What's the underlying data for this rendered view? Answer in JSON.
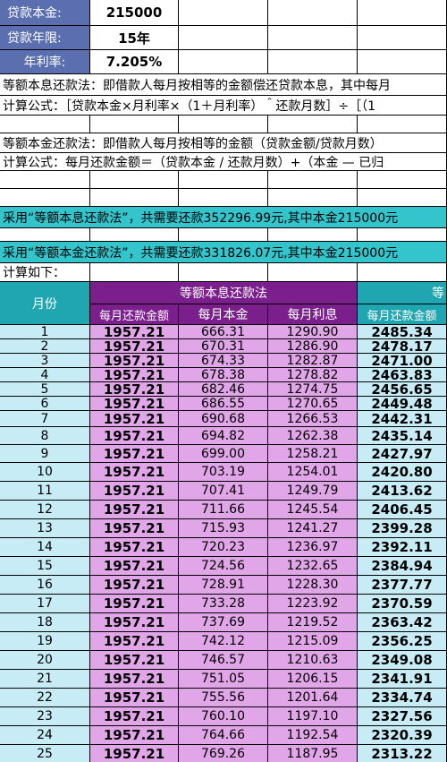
{
  "summary": {
    "principal_label": "贷款本金:",
    "principal_value": "215000",
    "years_label": "贷款年限:",
    "years_value": "15年",
    "rate_label": "年利率:",
    "rate_value": "7.205%"
  },
  "notes": {
    "equal_pi_desc": "等额本息还款法：即借款人每月按相等的金额偿还贷款本息，其中每月",
    "equal_pi_formula": "计算公式：［贷款本金×月利率×（1＋月利率）＾还款月数］÷［（1",
    "equal_p_desc": "等额本金还款法：即借款人每月按相等的金额（贷款金额/贷款月数）",
    "equal_p_formula": "计算公式：每月还款金额＝（贷款本金 / 还款月数）+（本金 — 已归",
    "equal_pi_total": "采用“等额本息还款法”，共需要还款352296.99元,其中本金215000元",
    "equal_p_total": "采用“等额本金还款法”，共需要还款331826.07元,其中本金215000元",
    "calc_below": "计算如下："
  },
  "table": {
    "month_header": "月份",
    "group1_header": "等额本息还款法",
    "group2_header": "等",
    "col_payment": "每月还款金额",
    "col_principal": "每月本金",
    "col_interest": "每月利息",
    "col_payment2": "每月还款金额",
    "rows": [
      {
        "m": "1",
        "pay": "1957.21",
        "prin": "666.31",
        "int": "1290.90",
        "pay2": "2485.34"
      },
      {
        "m": "2",
        "pay": "1957.21",
        "prin": "670.31",
        "int": "1286.90",
        "pay2": "2478.17"
      },
      {
        "m": "3",
        "pay": "1957.21",
        "prin": "674.33",
        "int": "1282.87",
        "pay2": "2471.00"
      },
      {
        "m": "4",
        "pay": "1957.21",
        "prin": "678.38",
        "int": "1278.82",
        "pay2": "2463.83"
      },
      {
        "m": "5",
        "pay": "1957.21",
        "prin": "682.46",
        "int": "1274.75",
        "pay2": "2456.65"
      },
      {
        "m": "6",
        "pay": "1957.21",
        "prin": "686.55",
        "int": "1270.65",
        "pay2": "2449.48"
      },
      {
        "m": "7",
        "pay": "1957.21",
        "prin": "690.68",
        "int": "1266.53",
        "pay2": "2442.31"
      },
      {
        "m": "8",
        "pay": "1957.21",
        "prin": "694.82",
        "int": "1262.38",
        "pay2": "2435.14"
      },
      {
        "m": "9",
        "pay": "1957.21",
        "prin": "699.00",
        "int": "1258.21",
        "pay2": "2427.97"
      },
      {
        "m": "10",
        "pay": "1957.21",
        "prin": "703.19",
        "int": "1254.01",
        "pay2": "2420.80"
      },
      {
        "m": "11",
        "pay": "1957.21",
        "prin": "707.41",
        "int": "1249.79",
        "pay2": "2413.62"
      },
      {
        "m": "12",
        "pay": "1957.21",
        "prin": "711.66",
        "int": "1245.54",
        "pay2": "2406.45"
      },
      {
        "m": "13",
        "pay": "1957.21",
        "prin": "715.93",
        "int": "1241.27",
        "pay2": "2399.28"
      },
      {
        "m": "14",
        "pay": "1957.21",
        "prin": "720.23",
        "int": "1236.97",
        "pay2": "2392.11"
      },
      {
        "m": "15",
        "pay": "1957.21",
        "prin": "724.56",
        "int": "1232.65",
        "pay2": "2384.94"
      },
      {
        "m": "16",
        "pay": "1957.21",
        "prin": "728.91",
        "int": "1228.30",
        "pay2": "2377.77"
      },
      {
        "m": "17",
        "pay": "1957.21",
        "prin": "733.28",
        "int": "1223.92",
        "pay2": "2370.59"
      },
      {
        "m": "18",
        "pay": "1957.21",
        "prin": "737.69",
        "int": "1219.52",
        "pay2": "2363.42"
      },
      {
        "m": "19",
        "pay": "1957.21",
        "prin": "742.12",
        "int": "1215.09",
        "pay2": "2356.25"
      },
      {
        "m": "20",
        "pay": "1957.21",
        "prin": "746.57",
        "int": "1210.63",
        "pay2": "2349.08"
      },
      {
        "m": "21",
        "pay": "1957.21",
        "prin": "751.05",
        "int": "1206.15",
        "pay2": "2341.91"
      },
      {
        "m": "22",
        "pay": "1957.21",
        "prin": "755.56",
        "int": "1201.64",
        "pay2": "2334.74"
      },
      {
        "m": "23",
        "pay": "1957.21",
        "prin": "760.10",
        "int": "1197.10",
        "pay2": "2327.56"
      },
      {
        "m": "24",
        "pay": "1957.21",
        "prin": "764.66",
        "int": "1192.54",
        "pay2": "2320.39"
      },
      {
        "m": "25",
        "pay": "1957.21",
        "prin": "769.26",
        "int": "1187.95",
        "pay2": "2313.22"
      }
    ]
  }
}
